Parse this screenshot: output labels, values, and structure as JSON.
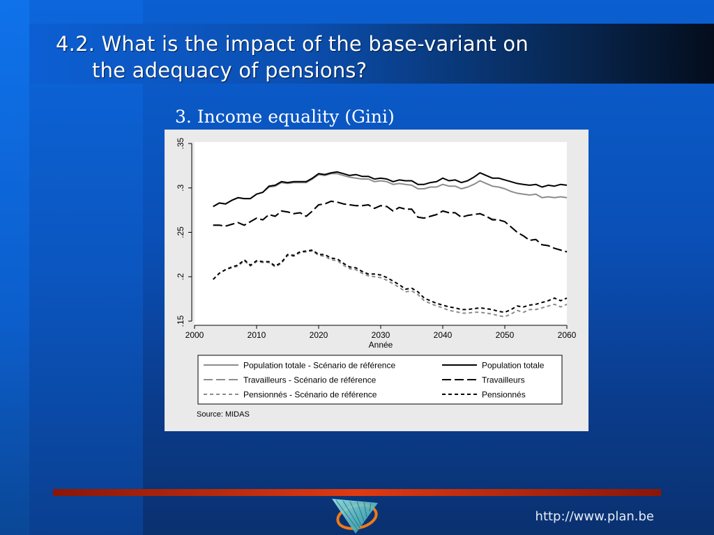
{
  "slide": {
    "title_line1": "4.2. What is the impact of the base-variant on",
    "title_line2": "the adequacy of pensions?",
    "subtitle": "3. Income equality (Gini)",
    "footer_url": "http://www.plan.be"
  },
  "colors": {
    "reference_series": "#8c8c8c",
    "variant_series": "#000000",
    "panel_bg": "#eaeaea",
    "accent_bar": "#e03a10"
  },
  "chart_data": {
    "type": "line",
    "title": "",
    "xlabel": "Année",
    "ylabel": "",
    "xlim": [
      2000,
      2060
    ],
    "ylim": [
      0.15,
      0.35
    ],
    "xticks": [
      "2000",
      "2010",
      "2020",
      "2030",
      "2040",
      "2050",
      "2060"
    ],
    "yticks": [
      ".15",
      ".2",
      ".25",
      ".3",
      ".35"
    ],
    "grid": false,
    "legend_position": "bottom",
    "source_note": "Source: MIDAS",
    "x": [
      2003,
      2004,
      2005,
      2006,
      2007,
      2008,
      2009,
      2010,
      2011,
      2012,
      2013,
      2014,
      2015,
      2016,
      2017,
      2018,
      2019,
      2020,
      2021,
      2022,
      2023,
      2024,
      2025,
      2026,
      2027,
      2028,
      2029,
      2030,
      2031,
      2032,
      2033,
      2034,
      2035,
      2036,
      2037,
      2038,
      2039,
      2040,
      2041,
      2042,
      2043,
      2044,
      2045,
      2046,
      2047,
      2048,
      2049,
      2050,
      2051,
      2052,
      2053,
      2054,
      2055,
      2056,
      2057,
      2058,
      2059,
      2060
    ],
    "series": [
      {
        "name": "Population totale - Scénario de référence",
        "style": "solid",
        "color": "gray",
        "values": [
          0.279,
          0.283,
          0.282,
          0.286,
          0.289,
          0.288,
          0.288,
          0.293,
          0.295,
          0.301,
          0.302,
          0.306,
          0.305,
          0.306,
          0.306,
          0.306,
          0.31,
          0.315,
          0.314,
          0.316,
          0.316,
          0.314,
          0.312,
          0.311,
          0.31,
          0.31,
          0.307,
          0.308,
          0.307,
          0.304,
          0.305,
          0.304,
          0.303,
          0.299,
          0.299,
          0.301,
          0.301,
          0.304,
          0.302,
          0.302,
          0.299,
          0.301,
          0.304,
          0.308,
          0.305,
          0.302,
          0.301,
          0.299,
          0.296,
          0.294,
          0.293,
          0.292,
          0.293,
          0.289,
          0.29,
          0.289,
          0.29,
          0.289
        ]
      },
      {
        "name": "Population totale",
        "style": "solid",
        "color": "black",
        "values": [
          0.279,
          0.283,
          0.282,
          0.286,
          0.289,
          0.288,
          0.288,
          0.293,
          0.295,
          0.302,
          0.303,
          0.307,
          0.306,
          0.307,
          0.307,
          0.307,
          0.311,
          0.316,
          0.315,
          0.317,
          0.318,
          0.316,
          0.314,
          0.315,
          0.313,
          0.313,
          0.31,
          0.311,
          0.31,
          0.307,
          0.309,
          0.308,
          0.308,
          0.304,
          0.304,
          0.306,
          0.307,
          0.311,
          0.308,
          0.309,
          0.306,
          0.308,
          0.312,
          0.317,
          0.314,
          0.311,
          0.311,
          0.309,
          0.307,
          0.305,
          0.304,
          0.303,
          0.304,
          0.301,
          0.303,
          0.302,
          0.304,
          0.303
        ]
      },
      {
        "name": "Travailleurs - Scénario de référence",
        "style": "longdash",
        "color": "gray",
        "values": [
          0.258,
          0.258,
          0.257,
          0.259,
          0.261,
          0.258,
          0.262,
          0.266,
          0.264,
          0.27,
          0.268,
          0.274,
          0.273,
          0.271,
          0.272,
          0.268,
          0.274,
          0.281,
          0.282,
          0.285,
          0.284,
          0.282,
          0.281,
          0.28,
          0.28,
          0.281,
          0.277,
          0.28,
          0.279,
          0.274,
          0.278,
          0.276,
          0.276,
          0.267,
          0.266,
          0.268,
          0.27,
          0.274,
          0.272,
          0.272,
          0.267,
          0.269,
          0.27,
          0.271,
          0.268,
          0.265,
          0.264,
          0.262,
          0.256,
          0.25,
          0.246,
          0.241,
          0.242,
          0.236,
          0.235,
          0.232,
          0.23,
          0.228
        ]
      },
      {
        "name": "Travailleurs",
        "style": "longdash",
        "color": "black",
        "values": [
          0.258,
          0.258,
          0.257,
          0.259,
          0.261,
          0.258,
          0.262,
          0.266,
          0.264,
          0.27,
          0.268,
          0.274,
          0.273,
          0.271,
          0.272,
          0.268,
          0.274,
          0.281,
          0.282,
          0.285,
          0.284,
          0.282,
          0.281,
          0.28,
          0.28,
          0.281,
          0.277,
          0.28,
          0.279,
          0.274,
          0.278,
          0.276,
          0.276,
          0.267,
          0.266,
          0.268,
          0.27,
          0.274,
          0.272,
          0.272,
          0.267,
          0.269,
          0.27,
          0.271,
          0.268,
          0.264,
          0.264,
          0.262,
          0.256,
          0.25,
          0.246,
          0.241,
          0.242,
          0.236,
          0.235,
          0.232,
          0.23,
          0.228
        ]
      },
      {
        "name": "Pensionnés - Scénario de référence",
        "style": "shortdash",
        "color": "gray",
        "values": [
          0.197,
          0.204,
          0.208,
          0.21,
          0.212,
          0.218,
          0.212,
          0.217,
          0.216,
          0.216,
          0.211,
          0.215,
          0.224,
          0.223,
          0.227,
          0.228,
          0.229,
          0.224,
          0.223,
          0.219,
          0.218,
          0.213,
          0.209,
          0.208,
          0.204,
          0.201,
          0.2,
          0.199,
          0.196,
          0.192,
          0.188,
          0.183,
          0.184,
          0.18,
          0.173,
          0.17,
          0.167,
          0.165,
          0.162,
          0.161,
          0.159,
          0.159,
          0.16,
          0.16,
          0.159,
          0.158,
          0.156,
          0.155,
          0.158,
          0.162,
          0.16,
          0.163,
          0.163,
          0.165,
          0.167,
          0.169,
          0.166,
          0.169
        ]
      },
      {
        "name": "Pensionnés",
        "style": "shortdash",
        "color": "black",
        "values": [
          0.197,
          0.204,
          0.208,
          0.211,
          0.213,
          0.219,
          0.213,
          0.218,
          0.217,
          0.217,
          0.212,
          0.216,
          0.225,
          0.224,
          0.228,
          0.229,
          0.23,
          0.225,
          0.225,
          0.221,
          0.22,
          0.215,
          0.211,
          0.21,
          0.206,
          0.203,
          0.203,
          0.202,
          0.199,
          0.195,
          0.191,
          0.186,
          0.187,
          0.183,
          0.176,
          0.173,
          0.17,
          0.168,
          0.166,
          0.165,
          0.163,
          0.163,
          0.164,
          0.165,
          0.164,
          0.163,
          0.161,
          0.16,
          0.163,
          0.167,
          0.166,
          0.168,
          0.169,
          0.171,
          0.173,
          0.176,
          0.173,
          0.176
        ]
      }
    ],
    "legend_order": [
      "Population totale - Scénario de référence",
      "Population totale",
      "Travailleurs - Scénario de référence",
      "Travailleurs",
      "Pensionnés - Scénario de référence",
      "Pensionnés"
    ]
  }
}
